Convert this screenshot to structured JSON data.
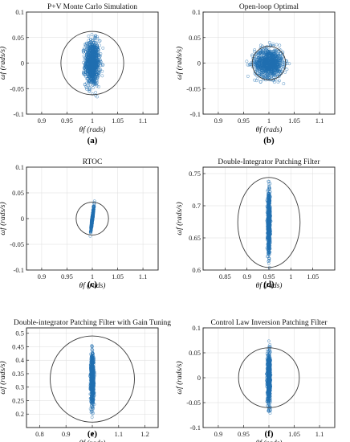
{
  "chart_data": [
    {
      "id": "a",
      "type": "scatter",
      "title": "P+V Monte Carlo Simulation",
      "subfigure_label": "(a)",
      "xlabel": "θf (rads)",
      "ylabel": "ωf (rads/s)",
      "xlim": [
        0.87,
        1.13
      ],
      "ylim": [
        -0.1,
        0.1
      ],
      "xticks": [
        0.9,
        0.95,
        1,
        1.05,
        1.1
      ],
      "yticks": [
        -0.1,
        -0.05,
        0,
        0.05,
        0.1
      ],
      "grid": true,
      "series": [
        {
          "marker": "circle",
          "color": "#1f6fb0",
          "distribution": {
            "center_x": 1.0,
            "center_y": 0.0,
            "spread_x": 0.007,
            "spread_y": 0.022,
            "count": 950
          }
        }
      ],
      "boundary_circle": {
        "center": [
          1.0,
          0.0
        ],
        "radius_x": 0.062,
        "radius_y": 0.062
      }
    },
    {
      "id": "b",
      "type": "scatter",
      "title": "Open-loop Optimal",
      "subfigure_label": "(b)",
      "xlabel": "θf (rads)",
      "ylabel": "ωf (rads/s)",
      "xlim": [
        0.87,
        1.13
      ],
      "ylim": [
        -0.1,
        0.1
      ],
      "xticks": [
        0.9,
        0.95,
        1,
        1.05,
        1.1
      ],
      "yticks": [
        -0.1,
        -0.05,
        0,
        0.05,
        0.1
      ],
      "grid": true,
      "series": [
        {
          "marker": "circle",
          "color": "#1f6fb0",
          "distribution": {
            "center_x": 1.0,
            "center_y": 0.0,
            "spread_x": 0.014,
            "spread_y": 0.014,
            "count": 950
          }
        }
      ],
      "boundary_circle": {
        "center": [
          1.0,
          0.0
        ],
        "radius_x": 0.033,
        "radius_y": 0.033
      }
    },
    {
      "id": "c",
      "type": "scatter",
      "title": "RTOC",
      "subfigure_label": "(c)",
      "xlabel": "θf (rads)",
      "ylabel": "ωf (rads/s)",
      "xlim": [
        0.87,
        1.13
      ],
      "ylim": [
        -0.1,
        0.1
      ],
      "xticks": [
        0.9,
        0.95,
        1,
        1.05,
        1.1
      ],
      "yticks": [
        -0.1,
        -0.05,
        0,
        0.05,
        0.1
      ],
      "grid": true,
      "series": [
        {
          "marker": "circle",
          "color": "#1f6fb0",
          "distribution": {
            "center_x": 1.0,
            "center_y": 0.0,
            "spread_x": 0.0015,
            "spread_y": 0.011,
            "count": 450,
            "correlation": 0.95
          }
        }
      ],
      "boundary_circle": {
        "center": [
          1.0,
          0.0
        ],
        "radius_x": 0.032,
        "radius_y": 0.032
      }
    },
    {
      "id": "d",
      "type": "scatter",
      "title": "Double-Integrator Patching Filter",
      "subfigure_label": "(d)",
      "xlabel": "θf (rads)",
      "ylabel": "ωf (rads/s)",
      "xlim": [
        0.8,
        1.1
      ],
      "ylim": [
        0.6,
        0.76
      ],
      "xticks": [
        0.85,
        0.9,
        0.95,
        1,
        1.05
      ],
      "yticks": [
        0.6,
        0.65,
        0.7,
        0.75
      ],
      "grid": true,
      "series": [
        {
          "marker": "circle",
          "color": "#1f6fb0",
          "distribution": {
            "center_x": 0.95,
            "center_y": 0.672,
            "spread_x": 0.0015,
            "spread_y": 0.022,
            "count": 900
          }
        }
      ],
      "boundary_circle": {
        "center": [
          0.95,
          0.674
        ],
        "radius_x": 0.071,
        "radius_y": 0.07
      }
    },
    {
      "id": "e",
      "type": "scatter",
      "title": "Double-integrator Patching Filter with Gain Tuning",
      "subfigure_label": "(e)",
      "xlabel": "θf (rads)",
      "ylabel": "ωf (rads/s)",
      "xlim": [
        0.75,
        1.25
      ],
      "ylim": [
        0.15,
        0.52
      ],
      "xticks": [
        0.8,
        0.9,
        1,
        1.1,
        1.2
      ],
      "yticks": [
        0.2,
        0.25,
        0.3,
        0.35,
        0.4,
        0.45,
        0.5
      ],
      "grid": true,
      "series": [
        {
          "marker": "circle",
          "color": "#1f6fb0",
          "distribution": {
            "center_x": 1.0,
            "center_y": 0.33,
            "spread_x": 0.003,
            "spread_y": 0.045,
            "count": 900
          }
        }
      ],
      "boundary_circle": {
        "center": [
          1.0,
          0.33
        ],
        "radius_x": 0.16,
        "radius_y": 0.16
      }
    },
    {
      "id": "f",
      "type": "scatter",
      "title": "Control Law Inversion Patching Filter",
      "subfigure_label": "(f)",
      "xlabel": "θf (rads)",
      "ylabel": "ωf (rads/s)",
      "xlim": [
        0.87,
        1.13
      ],
      "ylim": [
        -0.1,
        0.1
      ],
      "xticks": [
        0.9,
        0.95,
        1,
        1.05,
        1.1
      ],
      "yticks": [
        -0.1,
        -0.05,
        0,
        0.05,
        0.1
      ],
      "grid": true,
      "series": [
        {
          "marker": "circle",
          "color": "#1f6fb0",
          "distribution": {
            "center_x": 1.0,
            "center_y": 0.0,
            "spread_x": 0.0015,
            "spread_y": 0.024,
            "count": 900
          }
        }
      ],
      "boundary_circle": {
        "center": [
          1.0,
          0.0
        ],
        "radius_x": 0.06,
        "radius_y": 0.06
      }
    }
  ]
}
